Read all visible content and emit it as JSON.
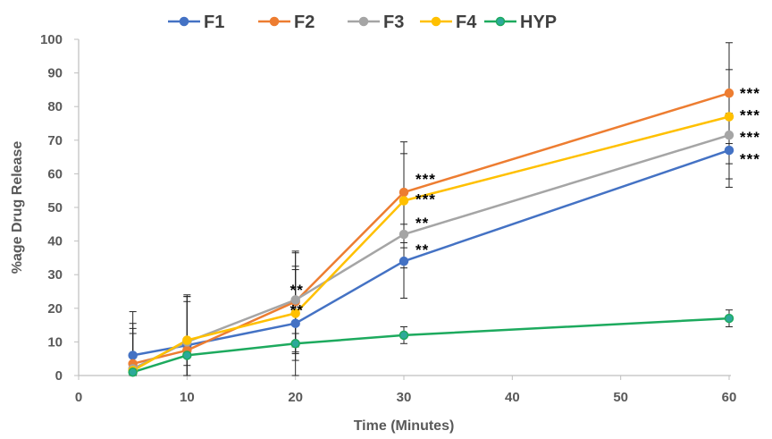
{
  "chart_data": {
    "type": "line",
    "title": "",
    "xlabel": "Time (Minutes)",
    "ylabel": "%age Drug Release",
    "xlim": [
      0,
      60
    ],
    "ylim": [
      0,
      100
    ],
    "x_ticks": [
      0,
      10,
      20,
      30,
      40,
      50,
      60
    ],
    "y_ticks": [
      0,
      10,
      20,
      30,
      40,
      50,
      60,
      70,
      80,
      90,
      100
    ],
    "x": [
      5,
      10,
      20,
      30,
      60
    ],
    "grid": false,
    "legend": "top",
    "series": [
      {
        "name": "F1",
        "color": "#4472C4",
        "values": [
          6,
          9,
          15.5,
          34,
          67
        ],
        "errors": [
          13,
          13,
          16,
          11,
          11
        ]
      },
      {
        "name": "F2",
        "color": "#ED7D31",
        "values": [
          3.5,
          7.5,
          22,
          54.5,
          84
        ],
        "errors": [
          12,
          16,
          15,
          15,
          15
        ]
      },
      {
        "name": "F3",
        "color": "#A5A5A5",
        "values": [
          2,
          10,
          22.5,
          42,
          71.5
        ],
        "errors": [
          12,
          14,
          14,
          10,
          13
        ]
      },
      {
        "name": "F4",
        "color": "#FFC000",
        "values": [
          1.5,
          10.5,
          18.5,
          52,
          77
        ],
        "errors": [
          11,
          13,
          14,
          14,
          14
        ]
      },
      {
        "name": "HYP",
        "color": "#1DAA5E",
        "marker_fill": "#2DA99A",
        "values": [
          1,
          6,
          9.5,
          12,
          17
        ],
        "errors": [
          2,
          3,
          3,
          2.5,
          2.5
        ]
      }
    ],
    "annotations": [
      {
        "x": 20,
        "y": 25.5,
        "text": "**"
      },
      {
        "x": 20,
        "y": 19.5,
        "text": "**"
      },
      {
        "x": 30,
        "y": 58.5,
        "text": "***"
      },
      {
        "x": 30,
        "y": 52.5,
        "text": "***"
      },
      {
        "x": 30,
        "y": 45.5,
        "text": "**"
      },
      {
        "x": 30,
        "y": 37.5,
        "text": "**"
      },
      {
        "x": 60,
        "y": 84,
        "text": "***"
      },
      {
        "x": 60,
        "y": 77.5,
        "text": "***"
      },
      {
        "x": 60,
        "y": 71,
        "text": "***"
      },
      {
        "x": 60,
        "y": 64.5,
        "text": "***"
      }
    ]
  }
}
